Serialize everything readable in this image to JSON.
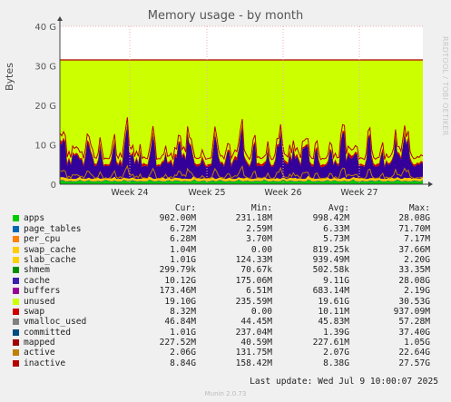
{
  "title": "Memory usage - by month",
  "side_label": "RRDTOOL / TOBI OETIKER",
  "ylabel": "Bytes",
  "chart_data": {
    "type": "area",
    "title": "Memory usage - by month",
    "ylabel": "Bytes",
    "ylim": [
      0,
      40
    ],
    "yticks": [
      "0",
      "10 G",
      "20 G",
      "30 G",
      "40 G"
    ],
    "xticks": [
      "Week 24",
      "Week 25",
      "Week 26",
      "Week 27"
    ],
    "grid": true,
    "series": [
      {
        "name": "apps",
        "color": "#00cc00"
      },
      {
        "name": "page_tables",
        "color": "#0066b3"
      },
      {
        "name": "per_cpu",
        "color": "#ff8000"
      },
      {
        "name": "swap_cache",
        "color": "#ffcc00"
      },
      {
        "name": "slab_cache",
        "color": "#330099"
      },
      {
        "name": "shmem",
        "color": "#990099"
      },
      {
        "name": "cache",
        "color": "#ccff00"
      },
      {
        "name": "buffers",
        "color": "#ff0000"
      },
      {
        "name": "unused",
        "color": "#808080"
      },
      {
        "name": "swap",
        "color": "#008f00"
      }
    ]
  },
  "legend": {
    "headers": {
      "cur": "Cur:",
      "min": "Min:",
      "avg": "Avg:",
      "max": "Max:"
    },
    "rows": [
      {
        "name": "apps",
        "color": "#00cc00",
        "cur": "902.00M",
        "min": "231.18M",
        "avg": "998.42M",
        "max": "28.08G"
      },
      {
        "name": "page_tables",
        "color": "#0066b3",
        "cur": "6.72M",
        "min": "2.59M",
        "avg": "6.33M",
        "max": "71.70M"
      },
      {
        "name": "per_cpu",
        "color": "#ff8000",
        "cur": "6.28M",
        "min": "3.70M",
        "avg": "5.73M",
        "max": "7.17M"
      },
      {
        "name": "swap_cache",
        "color": "#ffcc00",
        "cur": "1.04M",
        "min": "0.00",
        "avg": "819.25k",
        "max": "37.66M"
      },
      {
        "name": "slab_cache",
        "color": "#ffd000",
        "cur": "1.01G",
        "min": "124.33M",
        "avg": "939.49M",
        "max": "2.20G"
      },
      {
        "name": "shmem",
        "color": "#008f00",
        "cur": "299.79k",
        "min": "70.67k",
        "avg": "502.58k",
        "max": "33.35M"
      },
      {
        "name": "cache",
        "color": "#3a1fb0",
        "cur": "10.12G",
        "min": "175.06M",
        "avg": "9.11G",
        "max": "28.08G"
      },
      {
        "name": "buffers",
        "color": "#990099",
        "cur": "173.46M",
        "min": "6.51M",
        "avg": "683.14M",
        "max": "2.19G"
      },
      {
        "name": "unused",
        "color": "#ccff00",
        "cur": "19.10G",
        "min": "235.59M",
        "avg": "19.61G",
        "max": "30.53G"
      },
      {
        "name": "swap",
        "color": "#cc0000",
        "cur": "8.32M",
        "min": "0.00",
        "avg": "10.11M",
        "max": "937.09M"
      },
      {
        "name": "vmalloc_used",
        "color": "#808080",
        "cur": "46.84M",
        "min": "44.45M",
        "avg": "45.83M",
        "max": "57.28M"
      },
      {
        "name": "committed",
        "color": "#004d80",
        "cur": "1.01G",
        "min": "237.04M",
        "avg": "1.39G",
        "max": "37.40G"
      },
      {
        "name": "mapped",
        "color": "#a00000",
        "cur": "227.52M",
        "min": "40.59M",
        "avg": "227.61M",
        "max": "1.05G"
      },
      {
        "name": "active",
        "color": "#c08000",
        "cur": "2.06G",
        "min": "131.75M",
        "avg": "2.07G",
        "max": "22.64G"
      },
      {
        "name": "inactive",
        "color": "#b30000",
        "cur": "8.84G",
        "min": "158.42M",
        "avg": "8.38G",
        "max": "27.57G"
      }
    ]
  },
  "footer": "Last update: Wed Jul  9 10:00:07 2025",
  "munin": "Munin 2.0.73"
}
